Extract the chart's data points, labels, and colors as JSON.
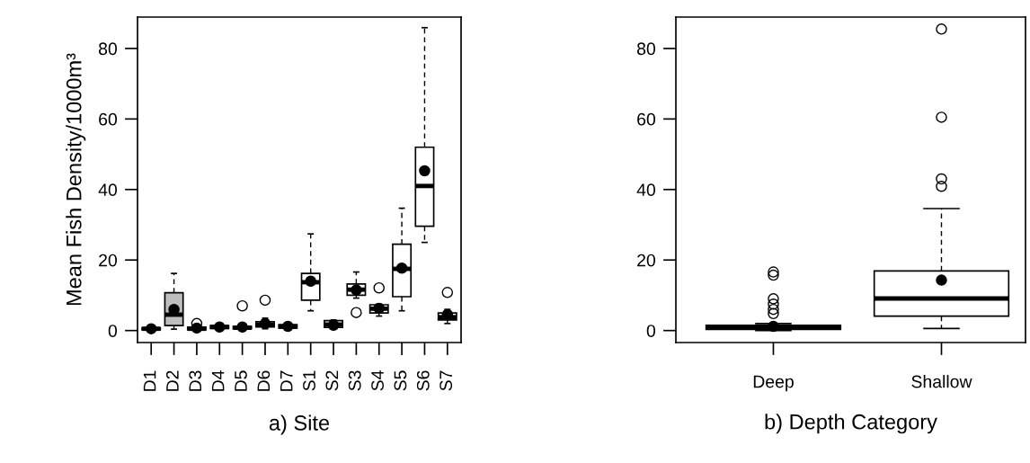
{
  "chart_data": [
    {
      "type": "box",
      "xlabel": "a) Site",
      "ylabel": "Mean Fish Density/1000m³",
      "categories": [
        "D1",
        "D2",
        "D3",
        "D4",
        "D5",
        "D6",
        "D7",
        "S1",
        "S2",
        "S3",
        "S4",
        "S5",
        "S6",
        "S7"
      ],
      "colors": [
        "#ffffff",
        "#bebebe",
        "#ffffff",
        "#ffffff",
        "#ffffff",
        "#ffffff",
        "#ffffff",
        "#ffffff",
        "#ffffff",
        "#ffffff",
        "#ffffff",
        "#ffffff",
        "#ffffff",
        "#ffffff"
      ],
      "boxes": [
        {
          "low": 0,
          "q1": 0.2,
          "median": 0.5,
          "q3": 0.8,
          "high": 1.2,
          "mean": 0.5
        },
        {
          "low": 0.4,
          "q1": 1.4,
          "median": 4.5,
          "q3": 10.7,
          "high": 16.2,
          "mean": 6.0
        },
        {
          "low": 0,
          "q1": 0.2,
          "median": 0.5,
          "q3": 1.0,
          "high": 1.4,
          "mean": 0.7,
          "outliers": [
            2.0
          ]
        },
        {
          "low": 0.3,
          "q1": 0.6,
          "median": 1.0,
          "q3": 1.4,
          "high": 1.7,
          "mean": 1.0
        },
        {
          "low": 0.2,
          "q1": 0.5,
          "median": 0.8,
          "q3": 1.2,
          "high": 1.8,
          "mean": 1.0,
          "outliers": [
            7.0
          ]
        },
        {
          "low": 0.5,
          "q1": 1.0,
          "median": 1.6,
          "q3": 2.5,
          "high": 3.5,
          "mean": 2.0,
          "outliers": [
            8.6
          ]
        },
        {
          "low": 0.3,
          "q1": 0.7,
          "median": 1.1,
          "q3": 1.7,
          "high": 2.2,
          "mean": 1.2
        },
        {
          "low": 5.6,
          "q1": 8.6,
          "median": 13.7,
          "q3": 16.2,
          "high": 27.4,
          "mean": 14.0
        },
        {
          "low": 0.8,
          "q1": 0.9,
          "median": 1.7,
          "q3": 2.8,
          "high": 3.0,
          "mean": 1.5
        },
        {
          "low": 9.2,
          "q1": 10.0,
          "median": 11.6,
          "q3": 13.2,
          "high": 16.6,
          "mean": 11.5,
          "outliers": [
            5.1
          ]
        },
        {
          "low": 4.1,
          "q1": 5.0,
          "median": 6.2,
          "q3": 7.3,
          "high": 7.5,
          "mean": 6.3,
          "outliers": [
            12.1
          ]
        },
        {
          "low": 5.6,
          "q1": 9.6,
          "median": 17.5,
          "q3": 24.5,
          "high": 34.7,
          "mean": 17.7
        },
        {
          "low": 25.0,
          "q1": 29.6,
          "median": 41.0,
          "q3": 52.0,
          "high": 85.9,
          "mean": 45.3
        },
        {
          "low": 2.0,
          "q1": 3.0,
          "median": 3.8,
          "q3": 5.0,
          "high": 6.0,
          "mean": 4.5,
          "outliers": [
            10.8
          ]
        }
      ],
      "ylim": [
        -3.4,
        88.9
      ],
      "yticks": [
        0,
        20,
        40,
        60,
        80
      ]
    },
    {
      "type": "box",
      "xlabel": "b) Depth Category",
      "categories": [
        "Deep",
        "Shallow"
      ],
      "colors": [
        "#ffffff",
        "#ffffff"
      ],
      "boxes": [
        {
          "low": 0,
          "q1": 0.3,
          "median": 0.8,
          "q3": 1.5,
          "high": 2.0,
          "mean": 1.2,
          "outliers": [
            16.6,
            15.7,
            9.0,
            7.5,
            6.0,
            4.8
          ]
        },
        {
          "low": 0.6,
          "q1": 4.1,
          "median": 9.1,
          "q3": 16.9,
          "high": 34.6,
          "mean": 14.3,
          "outliers": [
            85.5,
            60.5,
            43.0,
            40.9
          ]
        }
      ],
      "ylim": [
        -3.4,
        88.9
      ],
      "yticks": [
        0,
        20,
        40,
        60,
        80
      ]
    }
  ]
}
